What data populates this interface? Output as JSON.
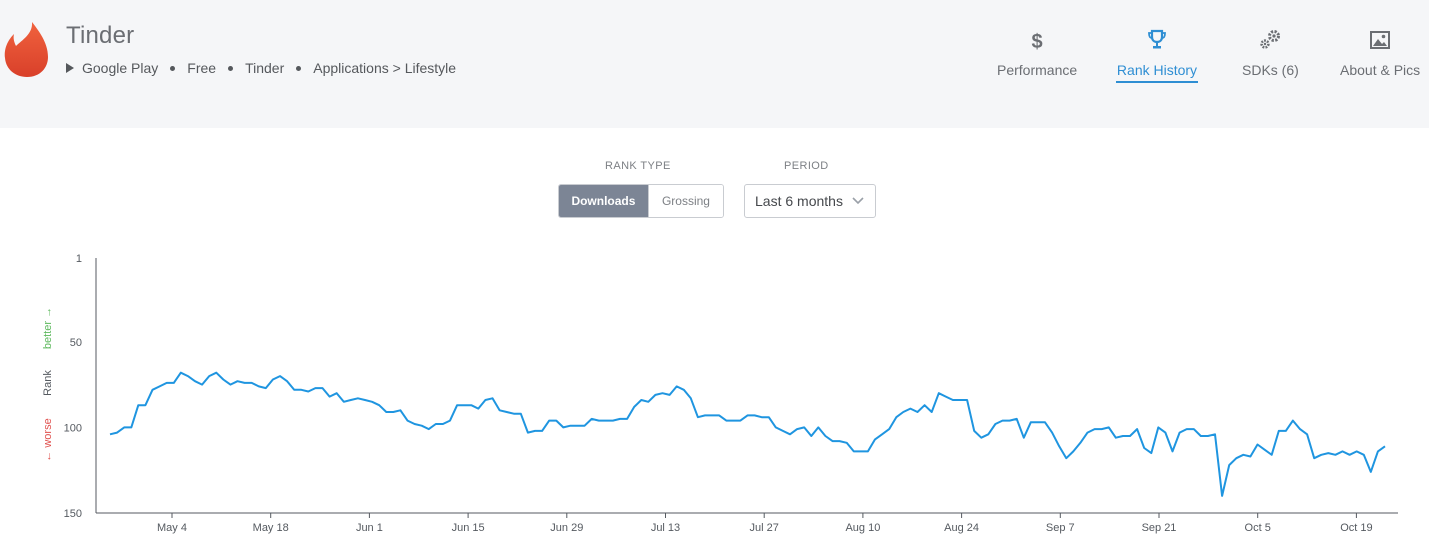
{
  "app": {
    "title": "Tinder",
    "logo_icon": "flame-logo",
    "breadcrumb": [
      "Google Play",
      "Free",
      "Tinder",
      "Applications > Lifestyle"
    ]
  },
  "nav": [
    {
      "label": "Performance",
      "icon": "dollar-icon",
      "active": false
    },
    {
      "label": "Rank History",
      "icon": "trophy-icon",
      "active": true
    },
    {
      "label": "SDKs (6)",
      "icon": "gears-icon",
      "active": false
    },
    {
      "label": "About & Pics",
      "icon": "image-icon",
      "active": false
    }
  ],
  "controls": {
    "rank_type_label": "RANK TYPE",
    "rank_type_options": [
      "Downloads",
      "Grossing"
    ],
    "rank_type_selected": "Downloads",
    "period_label": "PERIOD",
    "period_value": "Last 6 months"
  },
  "colors": {
    "accent": "#2e8ed3",
    "line": "#1f95e0",
    "better": "#5cb85c",
    "worse": "#e0504d"
  },
  "chart_data": {
    "type": "line",
    "y_axis": {
      "title": "Rank",
      "better_label": "better →",
      "worse_label": "← worse",
      "ticks": [
        1,
        50,
        100,
        150
      ],
      "range": [
        1,
        150
      ],
      "inverted": true
    },
    "x_axis": {
      "tick_labels": [
        "May 4",
        "May 18",
        "Jun 1",
        "Jun 15",
        "Jun 29",
        "Jul 13",
        "Jul 27",
        "Aug 10",
        "Aug 24",
        "Sep 7",
        "Sep 21",
        "Oct 5",
        "Oct 19"
      ]
    },
    "grid": false,
    "legend": "none",
    "series": [
      {
        "values": [
          104,
          103,
          100,
          100,
          87,
          87,
          78,
          76,
          74,
          74,
          68,
          70,
          73,
          75,
          70,
          68,
          72,
          75,
          73,
          74,
          74,
          76,
          77,
          72,
          70,
          73,
          78,
          78,
          79,
          77,
          77,
          82,
          80,
          85,
          84,
          83,
          84,
          85,
          87,
          91,
          91,
          90,
          96,
          98,
          99,
          101,
          98,
          98,
          96,
          87,
          87,
          87,
          89,
          84,
          83,
          90,
          91,
          92,
          92,
          103,
          102,
          102,
          96,
          96,
          100,
          99,
          99,
          99,
          95,
          96,
          96,
          96,
          95,
          95,
          88,
          84,
          85,
          81,
          80,
          81,
          76,
          78,
          83,
          94,
          93,
          93,
          93,
          96,
          96,
          96,
          93,
          93,
          94,
          94,
          100,
          102,
          104,
          101,
          100,
          105,
          100,
          105,
          108,
          108,
          109,
          114,
          114,
          114,
          107,
          104,
          101,
          94,
          91,
          89,
          91,
          87,
          91,
          80,
          82,
          84,
          84,
          84,
          102,
          106,
          104,
          98,
          96,
          96,
          95,
          106,
          97,
          97,
          97,
          103,
          111,
          118,
          114,
          109,
          103,
          101,
          101,
          100,
          106,
          105,
          105,
          101,
          112,
          115,
          100,
          103,
          114,
          103,
          101,
          101,
          105,
          105,
          104,
          140,
          122,
          118,
          116,
          117,
          110,
          113,
          116,
          102,
          102,
          96,
          101,
          104,
          118,
          116,
          115,
          116,
          114,
          116,
          114,
          116,
          126,
          114,
          111
        ]
      }
    ]
  }
}
